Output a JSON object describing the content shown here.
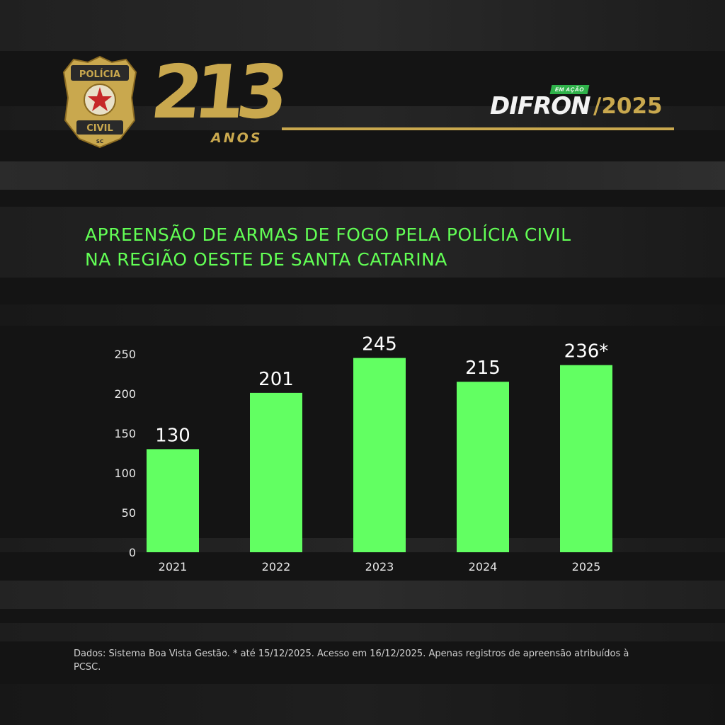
{
  "header": {
    "badge_text_top": "POLÍCIA",
    "badge_text_bottom": "CIVIL",
    "badge_state": "SC",
    "anniversary_number": "213",
    "anniversary_label": "ANOS",
    "brand_tag": "EM AÇÃO",
    "brand_name": "DIFRON",
    "brand_year": "/2025"
  },
  "title": {
    "line1": "APREENSÃO DE ARMAS DE FOGO PELA POLÍCIA CIVIL",
    "line2": "NA REGIÃO OESTE DE SANTA CATARINA"
  },
  "chart_data": {
    "type": "bar",
    "title": "APREENSÃO DE ARMAS DE FOGO PELA POLÍCIA CIVIL NA REGIÃO OESTE DE SANTA CATARINA",
    "xlabel": "",
    "ylabel": "",
    "categories": [
      "2021",
      "2022",
      "2023",
      "2024",
      "2025"
    ],
    "values": [
      130,
      201,
      245,
      215,
      236
    ],
    "data_labels": [
      "130",
      "201",
      "245",
      "215",
      "236*"
    ],
    "yticks": [
      0,
      50,
      100,
      150,
      200,
      250
    ],
    "ylim": [
      0,
      250
    ],
    "grid": false,
    "legend": "none",
    "bar_color": "#62ff62"
  },
  "footnote": "Dados: Sistema Boa Vista Gestão. * até 15/12/2025. Acesso em 16/12/2025. Apenas registros de apreensão atribuídos à PCSC.",
  "colors": {
    "accent_green": "#62ff55",
    "gold": "#c9a84e",
    "background": "#141414"
  }
}
